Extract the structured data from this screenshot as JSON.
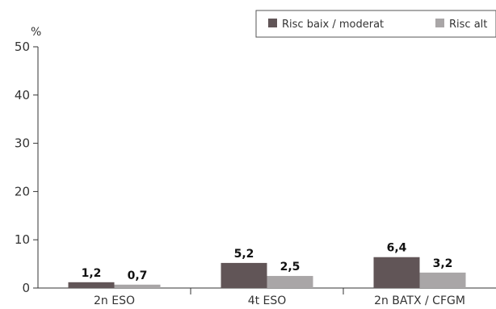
{
  "chart_data": {
    "type": "bar",
    "title": "",
    "xlabel": "",
    "ylabel": "%",
    "ylim": [
      0,
      50
    ],
    "yticks": [
      0,
      10,
      20,
      30,
      40,
      50
    ],
    "grid": false,
    "legend_position": "top-right",
    "categories": [
      "2n ESO",
      "4t ESO",
      "2n BATX / CFGM"
    ],
    "series": [
      {
        "name": "Risc baix / moderat",
        "color": "#615557",
        "values": [
          1.2,
          5.2,
          6.4
        ],
        "labels": [
          "1,2",
          "5,2",
          "6,4"
        ]
      },
      {
        "name": "Risc alt",
        "color": "#a9a6a7",
        "values": [
          0.7,
          2.5,
          3.2
        ],
        "labels": [
          "0,7",
          "2,5",
          "3,2"
        ]
      }
    ]
  }
}
